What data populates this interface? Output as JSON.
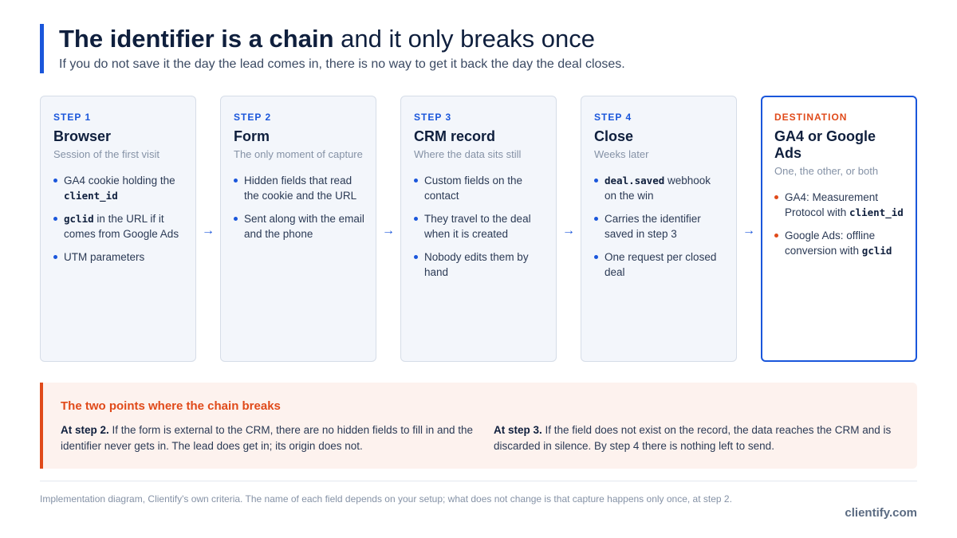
{
  "header": {
    "title_bold": "The identifier is a chain",
    "title_rest": "and it only breaks once",
    "subtitle": "If you do not save it the day the lead comes in, there is no way to get it back the day the deal closes."
  },
  "steps": [
    {
      "label": "STEP 1",
      "title": "Browser",
      "subtitle": "Session of the first visit",
      "bullets": [
        {
          "pre": "GA4 cookie holding the ",
          "code": "client_id",
          "post": ""
        },
        {
          "pre": "",
          "code": "gclid",
          "post": " in the URL if it comes from Google Ads"
        },
        {
          "pre": "UTM parameters",
          "code": "",
          "post": ""
        }
      ]
    },
    {
      "label": "STEP 2",
      "title": "Form",
      "subtitle": "The only moment of capture",
      "bullets": [
        {
          "pre": "Hidden fields that read the cookie and the URL",
          "code": "",
          "post": ""
        },
        {
          "pre": "Sent along with the email and the phone",
          "code": "",
          "post": ""
        }
      ]
    },
    {
      "label": "STEP 3",
      "title": "CRM record",
      "subtitle": "Where the data sits still",
      "bullets": [
        {
          "pre": "Custom fields on the contact",
          "code": "",
          "post": ""
        },
        {
          "pre": "They travel to the deal when it is created",
          "code": "",
          "post": ""
        },
        {
          "pre": "Nobody edits them by hand",
          "code": "",
          "post": ""
        }
      ]
    },
    {
      "label": "STEP 4",
      "title": "Close",
      "subtitle": "Weeks later",
      "bullets": [
        {
          "pre": "",
          "code": "deal.saved",
          "post": " webhook on the win"
        },
        {
          "pre": "Carries the identifier saved in step 3",
          "code": "",
          "post": ""
        },
        {
          "pre": "One request per closed deal",
          "code": "",
          "post": ""
        }
      ]
    },
    {
      "label": "DESTINATION",
      "title": "GA4 or Google Ads",
      "subtitle": "One, the other, or both",
      "bullets": [
        {
          "pre": "GA4: Measurement Protocol with ",
          "code": "client_id",
          "post": ""
        },
        {
          "pre": "Google Ads: offline conversion with ",
          "code": "gclid",
          "post": ""
        }
      ]
    }
  ],
  "arrow_glyph": "→",
  "breaks": {
    "title": "The two points where the chain breaks",
    "items": [
      {
        "lead": "At step 2.",
        "text": " If the form is external to the CRM, there are no hidden fields to fill in and the identifier never gets in. The lead does get in; its origin does not."
      },
      {
        "lead": "At step 3.",
        "text": " If the field does not exist on the record, the data reaches the CRM and is discarded in silence. By step 4 there is nothing left to send."
      }
    ]
  },
  "footnote": "Implementation diagram, Clientify's own criteria. The name of each field depends on your setup; what does not change is that capture happens only once, at step 2.",
  "brand": "clientify.com",
  "colors": {
    "accent": "#1a56db",
    "alert": "#e04a1a",
    "ink": "#0f1f3d"
  }
}
